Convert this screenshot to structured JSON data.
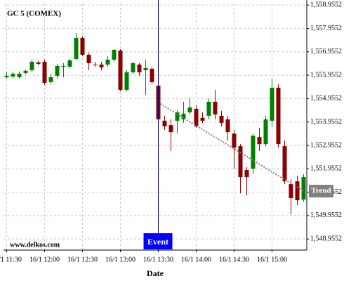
{
  "chart_data": {
    "type": "candlestick",
    "title": "GC 5 (COMEX)",
    "watermark": "www.delkos.com",
    "x_label": "Date",
    "x": [
      "16/1 11:30",
      "16/1 11:35",
      "16/1 11:40",
      "16/1 11:45",
      "16/1 11:50",
      "16/1 11:55",
      "16/1 12:00",
      "16/1 12:05",
      "16/1 12:10",
      "16/1 12:15",
      "16/1 12:20",
      "16/1 12:25",
      "16/1 12:30",
      "16/1 12:35",
      "16/1 12:40",
      "16/1 12:45",
      "16/1 12:50",
      "16/1 12:55",
      "16/1 13:00",
      "16/1 13:05",
      "16/1 13:10",
      "16/1 13:15",
      "16/1 13:20",
      "16/1 13:25",
      "16/1 13:30",
      "16/1 13:35",
      "16/1 13:40",
      "16/1 13:45",
      "16/1 13:50",
      "16/1 13:55",
      "16/1 14:00",
      "16/1 14:05",
      "16/1 14:10",
      "16/1 14:15",
      "16/1 14:20",
      "16/1 14:25",
      "16/1 14:30",
      "16/1 14:35",
      "16/1 14:40",
      "16/1 14:45",
      "16/1 14:50",
      "16/1 14:55",
      "16/1 15:00",
      "16/1 15:05",
      "16/1 15:10",
      "16/1 15:15",
      "16/1 15:20",
      "16/1 15:25"
    ],
    "open": [
      1555.87,
      1555.9,
      1555.87,
      1556.05,
      1556.17,
      1556.5,
      1556.53,
      1555.66,
      1555.93,
      1556.32,
      1556.32,
      1556.65,
      1557.55,
      1556.83,
      1556.41,
      1556.41,
      1556.41,
      1556.62,
      1557.01,
      1555.33,
      1556.08,
      1556.41,
      1556.17,
      1556.23,
      1555.51,
      1554.01,
      1553.82,
      1554.01,
      1554.07,
      1554.37,
      1554.52,
      1554.13,
      1554.22,
      1554.82,
      1554.22,
      1554.07,
      1553.46,
      1552.92,
      1551.9,
      1551.96,
      1553.31,
      1553.01,
      1554.01,
      1555.42,
      1552.92,
      1551.3,
      1551.42,
      1550.64
    ],
    "high": [
      1556.08,
      1556.11,
      1556.11,
      1556.2,
      1556.62,
      1556.56,
      1556.62,
      1556.02,
      1556.44,
      1556.47,
      1556.65,
      1557.76,
      1557.61,
      1556.92,
      1556.53,
      1556.53,
      1556.77,
      1557.07,
      1557.07,
      1556.17,
      1556.53,
      1556.47,
      1556.62,
      1556.32,
      1555.57,
      1554.22,
      1554.07,
      1554.46,
      1554.82,
      1554.97,
      1554.67,
      1554.37,
      1554.97,
      1555.33,
      1554.43,
      1554.22,
      1553.61,
      1553.01,
      1552.02,
      1553.46,
      1553.71,
      1554.22,
      1555.81,
      1555.57,
      1553.16,
      1551.51,
      1551.66,
      1551.72
    ],
    "low": [
      1555.81,
      1555.81,
      1555.81,
      1555.99,
      1556.08,
      1556.38,
      1555.54,
      1555.57,
      1555.81,
      1555.87,
      1556.26,
      1556.59,
      1556.77,
      1556.17,
      1556.32,
      1556.17,
      1556.32,
      1556.53,
      1555.27,
      1555.27,
      1555.99,
      1555.93,
      1555.12,
      1555.57,
      1553.92,
      1553.61,
      1552.71,
      1553.46,
      1553.92,
      1554.28,
      1553.71,
      1553.92,
      1554.07,
      1554.07,
      1553.77,
      1553.16,
      1551.96,
      1550.91,
      1550.82,
      1551.72,
      1552.71,
      1552.92,
      1553.77,
      1552.86,
      1551.3,
      1550.01,
      1550.4,
      1550.55
    ],
    "close": [
      1555.93,
      1556.02,
      1556.02,
      1556.14,
      1556.53,
      1556.44,
      1555.63,
      1555.87,
      1556.35,
      1556.35,
      1556.59,
      1557.55,
      1556.83,
      1556.47,
      1556.4,
      1556.29,
      1556.62,
      1557.04,
      1555.33,
      1556.08,
      1556.47,
      1556.08,
      1556.26,
      1555.66,
      1554.07,
      1553.77,
      1553.52,
      1554.37,
      1554.31,
      1554.58,
      1553.77,
      1554.01,
      1554.82,
      1554.28,
      1553.92,
      1553.52,
      1552.86,
      1551.6,
      1551.6,
      1553.37,
      1553.01,
      1554.07,
      1555.42,
      1553.01,
      1551.42,
      1550.7,
      1550.61,
      1551.6
    ],
    "up_color": "#008000",
    "down_color": "#8b0000",
    "ylim": [
      1548.48,
      1559.02
    ],
    "yticks": [
      {
        "value": 1558.9552,
        "label": "1,558.9552"
      },
      {
        "value": 1557.9552,
        "label": "1,557.9552"
      },
      {
        "value": 1556.9552,
        "label": "1,556.9552"
      },
      {
        "value": 1555.9552,
        "label": "1,555.9552"
      },
      {
        "value": 1554.9552,
        "label": "1,554.9552"
      },
      {
        "value": 1553.9552,
        "label": "1,553.9552"
      },
      {
        "value": 1552.9552,
        "label": "1,552.9552"
      },
      {
        "value": 1551.9552,
        "label": "1,551.9552"
      },
      {
        "value": 1550.9552,
        "label": "1,550.9552"
      },
      {
        "value": 1549.9552,
        "label": "1,549.9552"
      },
      {
        "value": 1548.9552,
        "label": "1,548.9552"
      }
    ],
    "xticks": [
      "16/1 11:30",
      "16/1 12:00",
      "16/1 12:30",
      "16/1 13:00",
      "16/1 13:30",
      "16/1 14:00",
      "16/1 14:30",
      "16/1 15:00"
    ],
    "grid": true,
    "event": {
      "label": "Event",
      "x": "16/1 13:30",
      "color": "#0000ff"
    },
    "trend": {
      "label": "Trend",
      "x": [
        "16/1 13:30",
        "16/1 15:25"
      ],
      "values": [
        1554.73,
        1551.0
      ],
      "color": "#808080"
    }
  }
}
